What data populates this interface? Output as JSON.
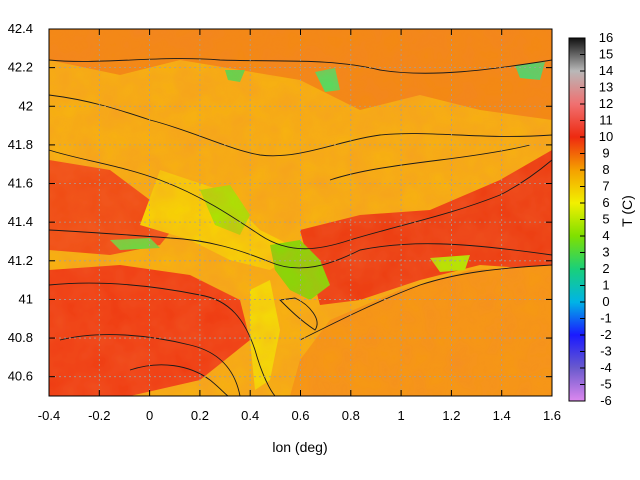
{
  "chart_data": {
    "type": "heatmap",
    "title": "",
    "xlabel": "lon (deg)",
    "ylabel": "",
    "colorbar_label": "T (C)",
    "xlim": [
      -0.4,
      1.6
    ],
    "ylim": [
      40.5,
      42.4
    ],
    "x_ticks": [
      "-0.4",
      "-0.2",
      "0",
      "0.2",
      "0.4",
      "0.6",
      "0.8",
      "1",
      "1.2",
      "1.4",
      "1.6"
    ],
    "y_ticks": [
      "40.6",
      "40.8",
      "41",
      "41.2",
      "41.4",
      "41.6",
      "41.8",
      "42",
      "42.2",
      "42.4"
    ],
    "colorbar_ticks": [
      "16",
      "15",
      "14",
      "13",
      "12",
      "11",
      "10",
      "9",
      "8",
      "7",
      "6",
      "5",
      "4",
      "3",
      "2",
      "1",
      "0",
      "-1",
      "-2",
      "-3",
      "-4",
      "-5",
      "-6"
    ],
    "colorbar_range": [
      -6,
      16
    ],
    "grid": true,
    "colors": {
      "stops": [
        {
          "value": -6,
          "color": "#dd88ee"
        },
        {
          "value": -4,
          "color": "#6a5acd"
        },
        {
          "value": -2,
          "color": "#1a1aff"
        },
        {
          "value": 0,
          "color": "#00b4e6"
        },
        {
          "value": 2,
          "color": "#19d07a"
        },
        {
          "value": 4,
          "color": "#7fe000"
        },
        {
          "value": 6,
          "color": "#f2f000"
        },
        {
          "value": 8,
          "color": "#f5a000"
        },
        {
          "value": 10,
          "color": "#ee2a10"
        },
        {
          "value": 12,
          "color": "#f07070"
        },
        {
          "value": 14,
          "color": "#b8b8b8"
        },
        {
          "value": 16,
          "color": "#111111"
        }
      ]
    }
  }
}
